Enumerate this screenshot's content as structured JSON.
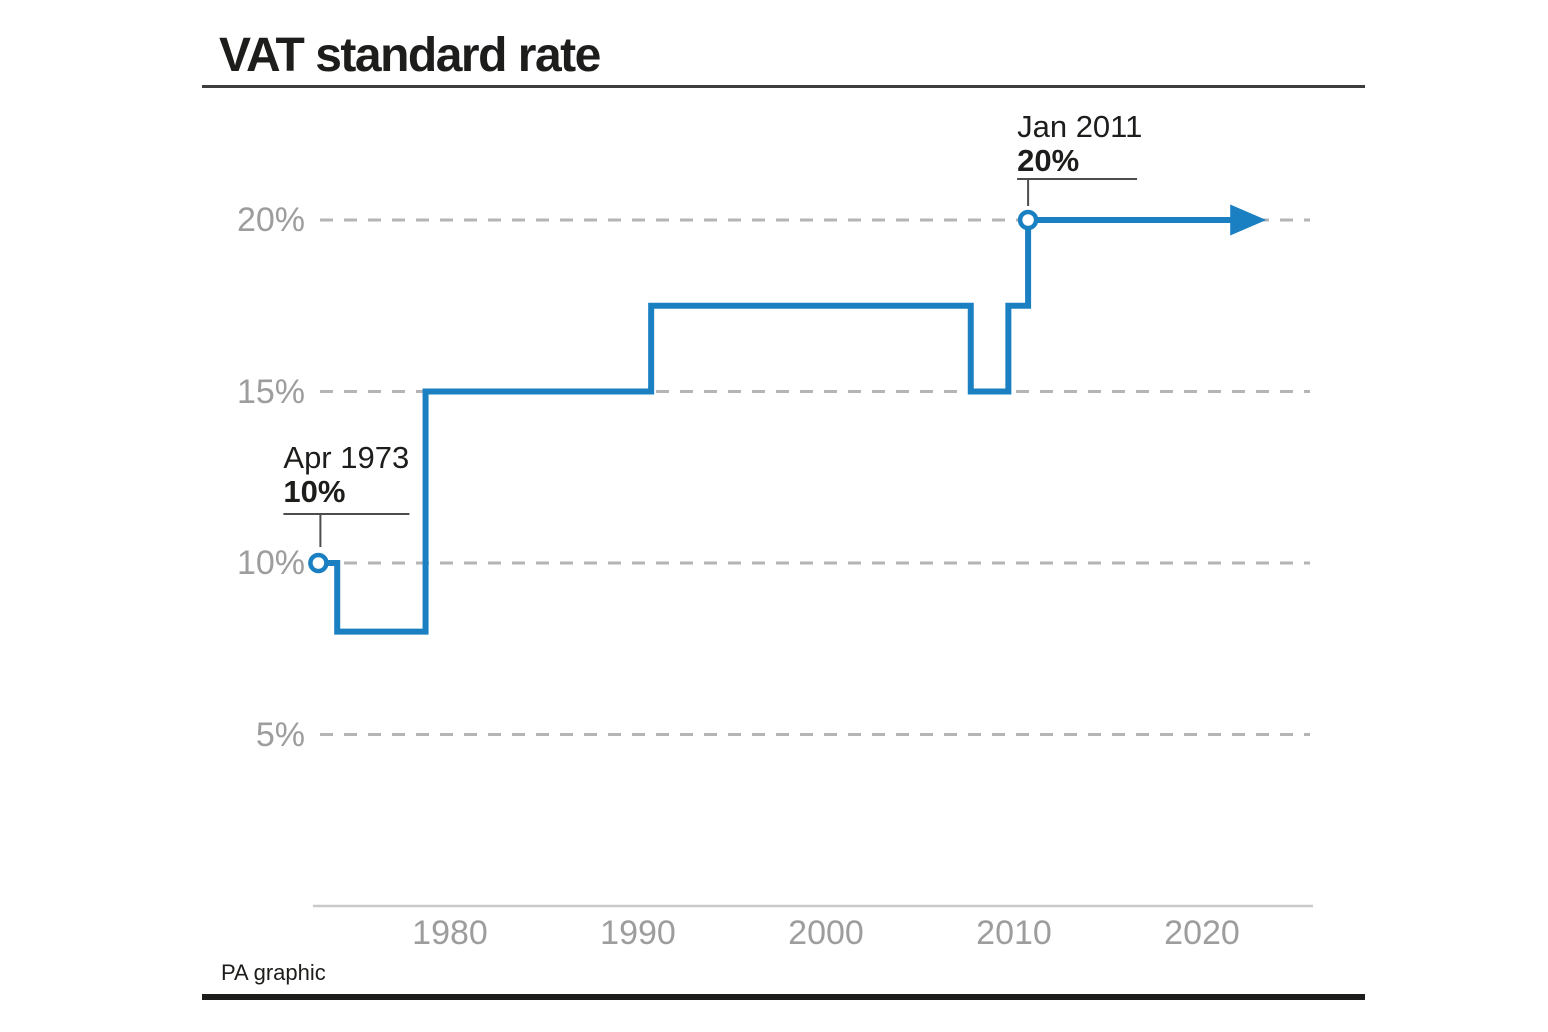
{
  "header": {
    "title": "VAT standard rate"
  },
  "footer": {
    "credit": "PA graphic"
  },
  "colors": {
    "line": "#1a80c2",
    "marker_fill": "#ffffff",
    "grid": "#b5b5b5",
    "axis": "#c9c9c9",
    "tick_text": "#9d9d9d",
    "ink": "#1d1d1b",
    "annotation_rule": "#4d4d4d"
  },
  "chart_data": {
    "type": "line",
    "subtype": "step-after",
    "title": "VAT standard rate",
    "xlabel": "",
    "ylabel": "",
    "grid": "horizontal-dashed",
    "legend": "none",
    "xlim_years": [
      1971.5,
      2026
    ],
    "ylim_percent": [
      0,
      23
    ],
    "x_ticks": [
      {
        "year": 1980,
        "label": "1980"
      },
      {
        "year": 1990,
        "label": "1990"
      },
      {
        "year": 2000,
        "label": "2000"
      },
      {
        "year": 2010,
        "label": "2010"
      },
      {
        "year": 2020,
        "label": "2020"
      }
    ],
    "y_ticks": [
      {
        "value": 20,
        "label": "20%"
      },
      {
        "value": 15,
        "label": "15%"
      },
      {
        "value": 10,
        "label": "10%"
      },
      {
        "value": 5,
        "label": "5%"
      }
    ],
    "series": [
      {
        "name": "VAT standard rate",
        "step": "after",
        "changes": [
          {
            "year": 1973,
            "rate": 10,
            "x_year": 1973.0
          },
          {
            "year": 1974,
            "rate": 8,
            "x_year": 1974.0
          },
          {
            "year": 1979,
            "rate": 15,
            "x_year": 1978.7
          },
          {
            "year": 1991,
            "rate": 17.5,
            "x_year": 1990.7
          },
          {
            "year": 2008,
            "rate": 15,
            "x_year": 2007.7
          },
          {
            "year": 2010,
            "rate": 17.5,
            "x_year": 2009.7
          },
          {
            "year": 2011,
            "rate": 20,
            "x_year": 2010.75
          }
        ],
        "end_x_year": 2021.5,
        "arrow_end": true
      }
    ],
    "annotations": [
      {
        "date": "Apr 1973",
        "rate_label": "10%",
        "rate": 10,
        "x_year": 1973.0
      },
      {
        "date": "Jan 2011",
        "rate_label": "20%",
        "rate": 20,
        "x_year": 2010.75
      }
    ]
  }
}
